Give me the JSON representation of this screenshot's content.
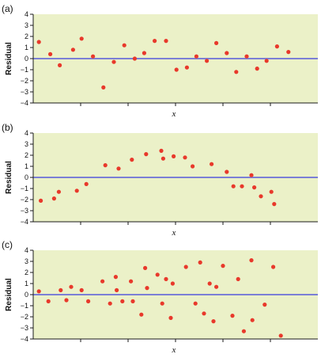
{
  "colors": {
    "panel_background": "#ebf1c8",
    "point": "#e8392b",
    "zero_line": "#7b7fd6",
    "axis": "#1a1a1a"
  },
  "chart_data": [
    {
      "type": "scatter",
      "panel_label": "(a)",
      "xlabel": "x",
      "ylabel": "Residual",
      "ylim": [
        -4,
        4
      ],
      "yticks": [
        "4",
        "3",
        "2",
        "1",
        "0",
        "−1",
        "−2",
        "−3",
        "−4"
      ],
      "ytick_values": [
        4,
        3,
        2,
        1,
        0,
        -1,
        -2,
        -3,
        -4
      ],
      "xlim": [
        0,
        30
      ],
      "xticks": [
        5,
        10,
        15,
        20,
        25
      ],
      "zero_line": true,
      "points": [
        {
          "x": 0.6,
          "y": 1.5
        },
        {
          "x": 1.8,
          "y": 0.4
        },
        {
          "x": 2.8,
          "y": -0.6
        },
        {
          "x": 4.2,
          "y": 0.8
        },
        {
          "x": 5.1,
          "y": 1.8
        },
        {
          "x": 6.3,
          "y": 0.2
        },
        {
          "x": 7.4,
          "y": -2.6
        },
        {
          "x": 8.5,
          "y": -0.3
        },
        {
          "x": 9.6,
          "y": 1.2
        },
        {
          "x": 10.7,
          "y": 0.0
        },
        {
          "x": 11.7,
          "y": 0.5
        },
        {
          "x": 12.8,
          "y": 1.6
        },
        {
          "x": 14.0,
          "y": 1.6
        },
        {
          "x": 15.1,
          "y": -1.0
        },
        {
          "x": 16.2,
          "y": -0.8
        },
        {
          "x": 17.2,
          "y": 0.2
        },
        {
          "x": 18.3,
          "y": -0.2
        },
        {
          "x": 19.3,
          "y": 1.4
        },
        {
          "x": 20.4,
          "y": 0.5
        },
        {
          "x": 21.4,
          "y": -1.2
        },
        {
          "x": 22.5,
          "y": 0.2
        },
        {
          "x": 23.6,
          "y": -0.9
        },
        {
          "x": 24.6,
          "y": -0.2
        },
        {
          "x": 25.7,
          "y": 1.1
        },
        {
          "x": 26.9,
          "y": 0.6
        }
      ]
    },
    {
      "type": "scatter",
      "panel_label": "(b)",
      "xlabel": "x",
      "ylabel": "Residual",
      "ylim": [
        -4,
        4
      ],
      "yticks": [
        "4",
        "3",
        "2",
        "1",
        "0",
        "−1",
        "−2",
        "−3",
        "−4"
      ],
      "ytick_values": [
        4,
        3,
        2,
        1,
        0,
        -1,
        -2,
        -3,
        -4
      ],
      "xlim": [
        0,
        30
      ],
      "xticks": [
        5,
        10,
        15,
        20,
        25
      ],
      "zero_line": true,
      "points": [
        {
          "x": 0.8,
          "y": -2.1
        },
        {
          "x": 2.2,
          "y": -1.9
        },
        {
          "x": 2.7,
          "y": -1.3
        },
        {
          "x": 4.6,
          "y": -1.2
        },
        {
          "x": 5.6,
          "y": -0.6
        },
        {
          "x": 7.6,
          "y": 1.1
        },
        {
          "x": 9.0,
          "y": 0.8
        },
        {
          "x": 10.4,
          "y": 1.6
        },
        {
          "x": 11.9,
          "y": 2.1
        },
        {
          "x": 13.5,
          "y": 2.4
        },
        {
          "x": 13.7,
          "y": 1.7
        },
        {
          "x": 14.8,
          "y": 1.9
        },
        {
          "x": 16.0,
          "y": 1.8
        },
        {
          "x": 16.8,
          "y": 1.0
        },
        {
          "x": 18.8,
          "y": 1.2
        },
        {
          "x": 20.4,
          "y": 0.5
        },
        {
          "x": 21.1,
          "y": -0.8
        },
        {
          "x": 22.0,
          "y": -0.8
        },
        {
          "x": 23.0,
          "y": 0.2
        },
        {
          "x": 23.3,
          "y": -0.9
        },
        {
          "x": 24.0,
          "y": -1.7
        },
        {
          "x": 25.1,
          "y": -1.3
        },
        {
          "x": 25.4,
          "y": -2.4
        }
      ]
    },
    {
      "type": "scatter",
      "panel_label": "(c)",
      "xlabel": "x",
      "ylabel": "Residual",
      "ylim": [
        -4,
        4
      ],
      "yticks": [
        "4",
        "3",
        "2",
        "1",
        "0",
        "−1",
        "−2",
        "−3",
        "−4"
      ],
      "ytick_values": [
        4,
        3,
        2,
        1,
        0,
        -1,
        -2,
        -3,
        -4
      ],
      "xlim": [
        0,
        30
      ],
      "xticks": [
        5,
        10,
        15,
        20,
        25
      ],
      "zero_line": true,
      "points": [
        {
          "x": 0.6,
          "y": 0.3
        },
        {
          "x": 1.6,
          "y": -0.6
        },
        {
          "x": 2.9,
          "y": 0.4
        },
        {
          "x": 3.5,
          "y": -0.5
        },
        {
          "x": 4.0,
          "y": 0.7
        },
        {
          "x": 5.1,
          "y": 0.4
        },
        {
          "x": 5.8,
          "y": -0.6
        },
        {
          "x": 7.3,
          "y": 1.2
        },
        {
          "x": 8.1,
          "y": -0.8
        },
        {
          "x": 8.7,
          "y": 1.6
        },
        {
          "x": 8.8,
          "y": 0.4
        },
        {
          "x": 9.4,
          "y": -0.6
        },
        {
          "x": 10.3,
          "y": 1.2
        },
        {
          "x": 10.5,
          "y": -0.6
        },
        {
          "x": 11.4,
          "y": -1.8
        },
        {
          "x": 11.8,
          "y": 2.4
        },
        {
          "x": 12.0,
          "y": 0.6
        },
        {
          "x": 13.1,
          "y": 1.8
        },
        {
          "x": 13.6,
          "y": -0.8
        },
        {
          "x": 14.0,
          "y": 1.4
        },
        {
          "x": 14.5,
          "y": -2.1
        },
        {
          "x": 14.7,
          "y": 1.0
        },
        {
          "x": 16.1,
          "y": 2.5
        },
        {
          "x": 17.1,
          "y": -0.8
        },
        {
          "x": 17.6,
          "y": 2.9
        },
        {
          "x": 18.0,
          "y": -1.7
        },
        {
          "x": 18.6,
          "y": 1.0
        },
        {
          "x": 19.0,
          "y": -2.4
        },
        {
          "x": 19.3,
          "y": 0.7
        },
        {
          "x": 20.0,
          "y": 2.6
        },
        {
          "x": 21.0,
          "y": -1.9
        },
        {
          "x": 21.6,
          "y": 1.4
        },
        {
          "x": 22.2,
          "y": -3.3
        },
        {
          "x": 23.0,
          "y": 3.1
        },
        {
          "x": 23.1,
          "y": -2.3
        },
        {
          "x": 24.4,
          "y": -0.9
        },
        {
          "x": 25.3,
          "y": 2.5
        },
        {
          "x": 26.1,
          "y": -3.7
        }
      ]
    }
  ]
}
